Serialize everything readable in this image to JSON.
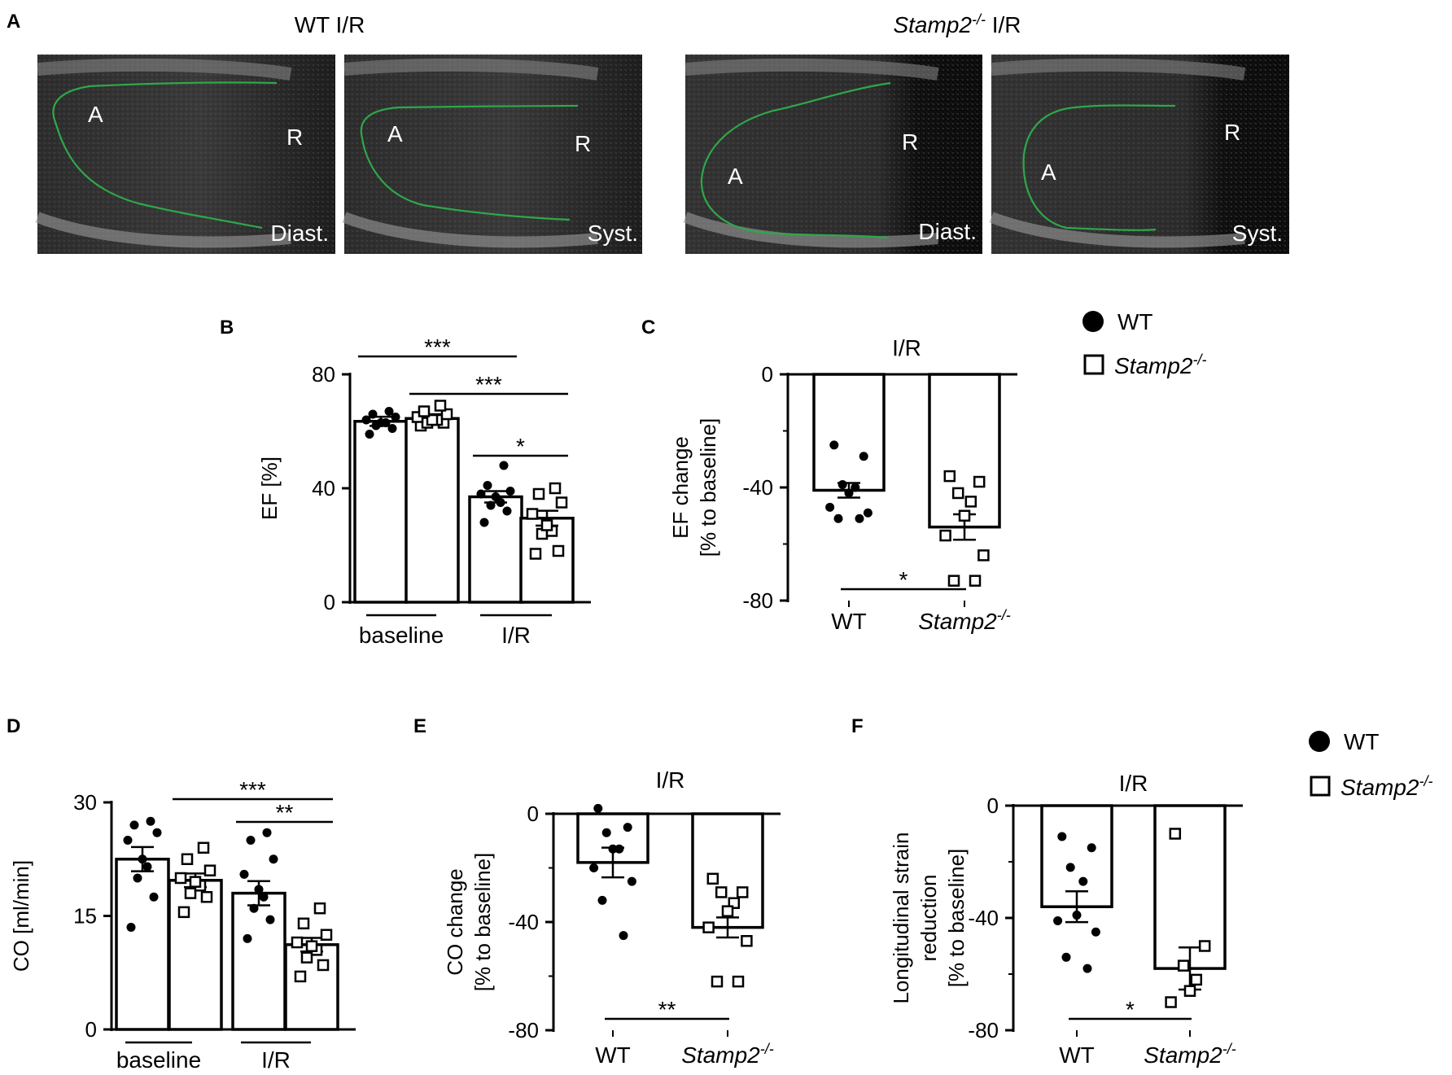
{
  "panel_labels": {
    "A": "A",
    "B": "B",
    "C": "C",
    "D": "D",
    "E": "E",
    "F": "F"
  },
  "panel_a": {
    "titles": {
      "wt": "WT I/R",
      "ko_gene": "Stamp2",
      "ko_sup": "-/-",
      "ko_suffix": " I/R"
    },
    "images": [
      {
        "apex": "A",
        "base": "R",
        "phase": "Diast."
      },
      {
        "apex": "A",
        "base": "R",
        "phase": "Syst."
      },
      {
        "apex": "A",
        "base": "R",
        "phase": "Diast."
      },
      {
        "apex": "A",
        "base": "R",
        "phase": "Syst."
      }
    ],
    "trace_color": "#2ea84a"
  },
  "legend": {
    "wt": "WT",
    "ko_gene": "Stamp2",
    "ko_sup": "-/-"
  },
  "chart_data": [
    {
      "panel": "B",
      "type": "bar",
      "ylabel": "EF [%]",
      "ylim": [
        0,
        80
      ],
      "yticks": [
        0,
        40,
        80
      ],
      "groups": [
        "baseline",
        "I/R"
      ],
      "bars": [
        {
          "group": "baseline",
          "genotype": "WT",
          "mean": 63.5,
          "sem": 1.6,
          "points": [
            59,
            61,
            62,
            63,
            63,
            64,
            65,
            66,
            67
          ]
        },
        {
          "group": "baseline",
          "genotype": "Stamp2-/-",
          "mean": 64.5,
          "sem": 1.5,
          "points": [
            62,
            63,
            63,
            64,
            64,
            65,
            66,
            67,
            69
          ]
        },
        {
          "group": "I/R",
          "genotype": "WT",
          "mean": 37,
          "sem": 2.0,
          "points": [
            28,
            32,
            34,
            35,
            37,
            38,
            39,
            41,
            48
          ]
        },
        {
          "group": "I/R",
          "genotype": "Stamp2-/-",
          "mean": 29.5,
          "sem": 2.6,
          "points": [
            17,
            18,
            24,
            25,
            27,
            31,
            35,
            38,
            40
          ]
        }
      ],
      "significance": [
        {
          "from": 0,
          "to": 2,
          "label": "***"
        },
        {
          "from": 1,
          "to": 3,
          "label": "***"
        },
        {
          "from": 2,
          "to": 3,
          "label": "*"
        }
      ]
    },
    {
      "panel": "C",
      "type": "bar",
      "title": "I/R",
      "ylabel_lines": [
        "EF change",
        "[% to baseline]"
      ],
      "ylim": [
        -80,
        0
      ],
      "yticks": [
        0,
        -40,
        -80
      ],
      "categories": [
        "WT",
        "Stamp2-/-"
      ],
      "bars": [
        {
          "genotype": "WT",
          "mean": -41,
          "sem": 2.6,
          "points": [
            -25,
            -29,
            -39,
            -40,
            -42,
            -47,
            -49,
            -51,
            -51
          ]
        },
        {
          "genotype": "Stamp2-/-",
          "mean": -54,
          "sem": 4.5,
          "points": [
            -36,
            -38,
            -42,
            -45,
            -50,
            -57,
            -64,
            -73,
            -73
          ]
        }
      ],
      "significance": [
        {
          "from": 0,
          "to": 1,
          "label": "*"
        }
      ]
    },
    {
      "panel": "D",
      "type": "bar",
      "ylabel": "CO [ml/min]",
      "ylim": [
        0,
        30
      ],
      "yticks": [
        0,
        15,
        30
      ],
      "groups": [
        "baseline",
        "I/R"
      ],
      "bars": [
        {
          "group": "baseline",
          "genotype": "WT",
          "mean": 22.5,
          "sem": 1.6,
          "points": [
            13.5,
            17.5,
            20,
            21.5,
            22.5,
            25,
            26,
            27,
            27.5
          ]
        },
        {
          "group": "baseline",
          "genotype": "Stamp2-/-",
          "mean": 19.7,
          "sem": 0.9,
          "points": [
            15.5,
            17.5,
            18,
            19,
            19.5,
            20,
            21,
            22.5,
            24
          ]
        },
        {
          "group": "I/R",
          "genotype": "WT",
          "mean": 18,
          "sem": 1.6,
          "points": [
            12,
            14.5,
            16,
            17.5,
            18.5,
            20.5,
            22.5,
            25,
            26
          ]
        },
        {
          "group": "I/R",
          "genotype": "Stamp2-/-",
          "mean": 11.2,
          "sem": 0.9,
          "points": [
            7,
            8.5,
            9.5,
            10.5,
            11,
            11.5,
            12.5,
            14,
            16
          ]
        }
      ],
      "significance": [
        {
          "from": 1,
          "to": 3,
          "label": "***"
        },
        {
          "from": 2,
          "to": 3,
          "label": "**"
        }
      ]
    },
    {
      "panel": "E",
      "type": "bar",
      "title": "I/R",
      "ylabel_lines": [
        "CO change",
        "[% to baseline]"
      ],
      "ylim": [
        -80,
        0
      ],
      "yticks": [
        0,
        -40,
        -80
      ],
      "categories": [
        "WT",
        "Stamp2-/-"
      ],
      "bars": [
        {
          "genotype": "WT",
          "mean": -18,
          "sem": 5.5,
          "points": [
            2,
            -5,
            -7,
            -13,
            -13,
            -20,
            -25,
            -32,
            -45
          ]
        },
        {
          "genotype": "Stamp2-/-",
          "mean": -42,
          "sem": 3.7,
          "points": [
            -24,
            -29,
            -29,
            -33,
            -36,
            -42,
            -47,
            -62,
            -62
          ]
        }
      ],
      "significance": [
        {
          "from": 0,
          "to": 1,
          "label": "**"
        }
      ]
    },
    {
      "panel": "F",
      "type": "bar",
      "title": "I/R",
      "ylabel_lines": [
        "Longitudinal strain",
        "reduction",
        "[% to baseline]"
      ],
      "ylim": [
        -80,
        0
      ],
      "yticks": [
        0,
        -40,
        -80
      ],
      "categories": [
        "WT",
        "Stamp2-/-"
      ],
      "bars": [
        {
          "genotype": "WT",
          "mean": -36,
          "sem": 5.5,
          "points": [
            -11,
            -15,
            -22,
            -27,
            -39,
            -41,
            -45,
            -54,
            -58
          ]
        },
        {
          "genotype": "Stamp2-/-",
          "mean": -58,
          "sem": 7.5,
          "points": [
            -10,
            -50,
            -57,
            -62,
            -66,
            -70
          ]
        }
      ],
      "significance": [
        {
          "from": 0,
          "to": 1,
          "label": "*"
        }
      ]
    }
  ]
}
